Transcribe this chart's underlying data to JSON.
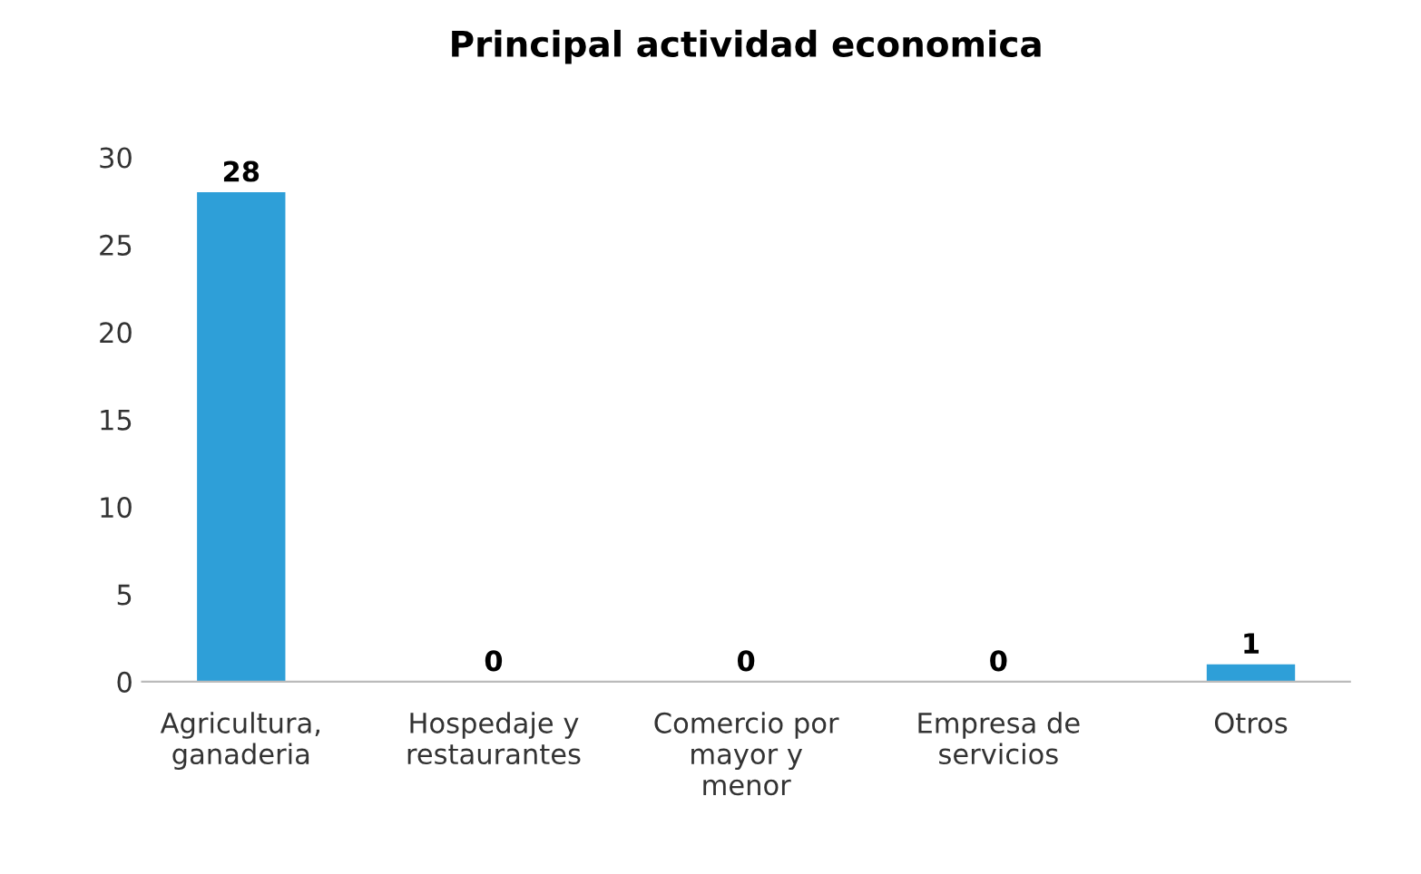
{
  "chart_data": {
    "type": "bar",
    "title": "Principal actividad economica",
    "categories": [
      "Agricultura,\nganaderia",
      "Hospedaje y\nrestaurantes",
      "Comercio por\nmayor y\nmenor",
      "Empresa de\nservicios",
      "Otros"
    ],
    "values": [
      28,
      0,
      0,
      0,
      1
    ],
    "color": "#2e9fd8",
    "ylim": [
      0,
      30
    ],
    "yticks": [
      0,
      5,
      10,
      15,
      20,
      25,
      30
    ],
    "grid": false,
    "data_labels": true
  }
}
